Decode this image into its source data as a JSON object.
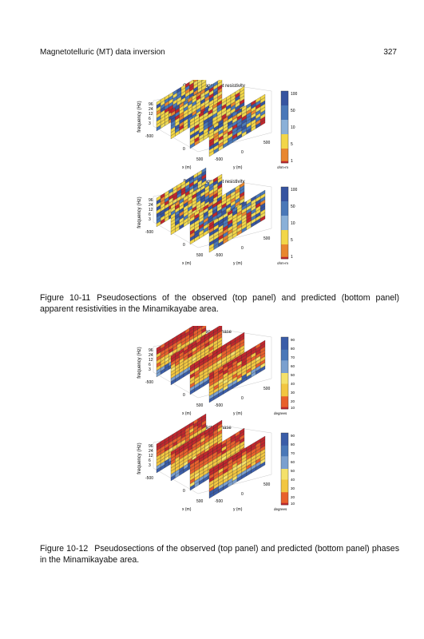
{
  "header": {
    "running_title": "Magnetotelluric (MT) data inversion",
    "page_number": "327"
  },
  "figure_10_11": {
    "panels": [
      {
        "title": "Observed apparent resistivity",
        "colorbar_ticks": [
          "100",
          "50",
          "10",
          "5",
          "1"
        ],
        "unit": "ohm-m"
      },
      {
        "title": "Predicted apparent resistivity",
        "colorbar_ticks": [
          "100",
          "50",
          "10",
          "5",
          "1"
        ],
        "unit": "ohm-m"
      }
    ],
    "axes": {
      "z_label": "frequency (Hz)",
      "z_ticks": [
        "96",
        "24",
        "12",
        "6",
        "3"
      ],
      "x_label": "x (m)",
      "y_label": "y (m)",
      "x_ticks": [
        "-500",
        "0",
        "500"
      ],
      "y_ticks": [
        "-500",
        "0",
        "500"
      ]
    },
    "caption_number": "Figure 10-11",
    "caption_text": "Pseudosections of the observed (top panel) and predicted (bottom panel) apparent resistivities in the Minamikayabe area."
  },
  "figure_10_12": {
    "panels": [
      {
        "title": "Observed phase",
        "colorbar_ticks": [
          "90",
          "80",
          "70",
          "60",
          "50",
          "40",
          "30",
          "20",
          "10"
        ],
        "unit": "degrees"
      },
      {
        "title": "Predicted phase",
        "colorbar_ticks": [
          "90",
          "80",
          "70",
          "60",
          "50",
          "40",
          "30",
          "20",
          "10"
        ],
        "unit": "degrees"
      }
    ],
    "axes": {
      "z_label": "frequency (Hz)",
      "z_ticks": [
        "96",
        "24",
        "12",
        "6",
        "3"
      ],
      "x_label": "x (m)",
      "y_label": "y (m)",
      "x_ticks": [
        "-500",
        "0",
        "500"
      ],
      "y_ticks": [
        "-500",
        "0",
        "500"
      ]
    },
    "caption_number": "Figure 10-12",
    "caption_text": "Pseudosections of the observed (top panel) and predicted (bottom panel) phases in the Minamikayabe area."
  }
}
